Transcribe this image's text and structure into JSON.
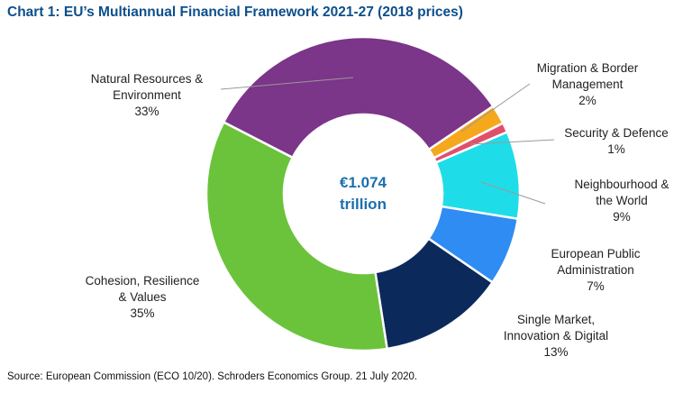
{
  "chart_data": {
    "type": "pie",
    "variant": "donut",
    "title": "Chart 1: EU’s Multiannual Financial Framework 2021-27 (2018 prices)",
    "center_label": [
      "€1.074",
      "trillion"
    ],
    "unit": "%",
    "slices": [
      {
        "name": "Migration & Border Management",
        "label_lines": [
          "Migration & Border",
          "Management"
        ],
        "value": 2,
        "color": "#f5a81c"
      },
      {
        "name": "Security & Defence",
        "label_lines": [
          "Security & Defence"
        ],
        "value": 1,
        "color": "#e04f6c"
      },
      {
        "name": "Neighbourhood & the World",
        "label_lines": [
          "Neighbourhood &",
          "the World"
        ],
        "value": 9,
        "color": "#1edde8"
      },
      {
        "name": "European Public Administration",
        "label_lines": [
          "European Public",
          "Administration"
        ],
        "value": 7,
        "color": "#2f8cf2"
      },
      {
        "name": "Single Market, Innovation & Digital",
        "label_lines": [
          "Single Market,",
          "Innovation & Digital"
        ],
        "value": 13,
        "color": "#0b2a5b"
      },
      {
        "name": "Cohesion, Resilience & Values",
        "label_lines": [
          "Cohesion, Resilience",
          "& Values"
        ],
        "value": 35,
        "color": "#6bc33b"
      },
      {
        "name": "Natural Resources & Environment",
        "label_lines": [
          "Natural Resources &",
          "Environment"
        ],
        "value": 33,
        "color": "#7b3589"
      }
    ],
    "value_labels": [
      "2%",
      "1%",
      "9%",
      "7%",
      "13%",
      "35%",
      "33%"
    ],
    "source": "Source: European Commission (ECO 10/20). Schroders Economics Group. 21 July 2020."
  }
}
